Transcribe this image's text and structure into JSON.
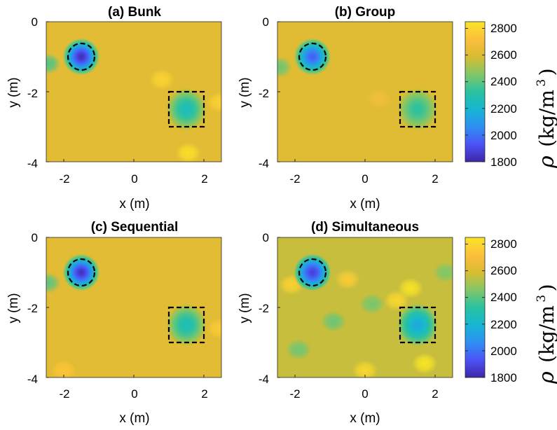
{
  "chart_data": [
    {
      "type": "heatmap",
      "title": "(a) Bunk",
      "xlabel": "x (m)",
      "ylabel": "y (m)",
      "xlim": [
        -2.5,
        2.5
      ],
      "ylim": [
        -4,
        0
      ],
      "xticks": [
        "-2",
        "0",
        "2"
      ],
      "yticks": [
        "0",
        "-2",
        "-4"
      ],
      "background_density": 2620,
      "anomalies": [
        {
          "shape": "circle",
          "center": [
            -1.5,
            -1.0
          ],
          "radius": 0.38,
          "min_density": 1820,
          "outline": "dashed"
        },
        {
          "shape": "square",
          "center": [
            1.5,
            -2.5
          ],
          "half_width": 0.5,
          "min_density": 2250,
          "outline": "dashed"
        }
      ],
      "highlights": [
        {
          "center": [
            0.8,
            -1.65
          ],
          "density": 2790
        },
        {
          "center": [
            1.55,
            -3.75
          ],
          "density": 2830
        },
        {
          "center": [
            -2.45,
            -1.2
          ],
          "density": 2380
        },
        {
          "center": [
            2.45,
            -2.3
          ],
          "density": 2780
        }
      ]
    },
    {
      "type": "heatmap",
      "title": "(b) Group",
      "xlabel": "x (m)",
      "ylabel": "y (m)",
      "xlim": [
        -2.5,
        2.5
      ],
      "ylim": [
        -4,
        0
      ],
      "xticks": [
        "-2",
        "0",
        "2"
      ],
      "yticks": [
        "0",
        "-2",
        "-4"
      ],
      "background_density": 2610,
      "anomalies": [
        {
          "shape": "circle",
          "center": [
            -1.5,
            -1.0
          ],
          "radius": 0.38,
          "min_density": 1950,
          "outline": "dashed"
        },
        {
          "shape": "square",
          "center": [
            1.5,
            -2.5
          ],
          "half_width": 0.5,
          "min_density": 2320,
          "outline": "dashed"
        }
      ],
      "highlights": [
        {
          "center": [
            -2.45,
            -1.3
          ],
          "density": 2420
        },
        {
          "center": [
            0.4,
            -2.2
          ],
          "density": 2680
        }
      ]
    },
    {
      "type": "heatmap",
      "title": "(c) Sequential",
      "xlabel": "x (m)",
      "ylabel": "y (m)",
      "xlim": [
        -2.5,
        2.5
      ],
      "ylim": [
        -4,
        0
      ],
      "xticks": [
        "-2",
        "0",
        "2"
      ],
      "yticks": [
        "0",
        "-2",
        "-4"
      ],
      "background_density": 2620,
      "anomalies": [
        {
          "shape": "circle",
          "center": [
            -1.5,
            -1.0
          ],
          "radius": 0.38,
          "min_density": 1830,
          "outline": "dashed"
        },
        {
          "shape": "square",
          "center": [
            1.5,
            -2.5
          ],
          "half_width": 0.5,
          "min_density": 2260,
          "outline": "dashed"
        }
      ],
      "highlights": [
        {
          "center": [
            -2.45,
            -1.3
          ],
          "density": 2400
        },
        {
          "center": [
            2.45,
            -2.6
          ],
          "density": 2760
        },
        {
          "center": [
            -2.0,
            -3.8
          ],
          "density": 2740
        }
      ]
    },
    {
      "type": "heatmap",
      "title": "(d) Simultaneous",
      "xlabel": "x (m)",
      "ylabel": "y (m)",
      "xlim": [
        -2.5,
        2.5
      ],
      "ylim": [
        -4,
        0
      ],
      "xticks": [
        "-2",
        "0",
        "2"
      ],
      "yticks": [
        "0",
        "-2",
        "-4"
      ],
      "background_density": 2560,
      "anomalies": [
        {
          "shape": "circle",
          "center": [
            -1.5,
            -1.0
          ],
          "radius": 0.38,
          "min_density": 1870,
          "outline": "dashed"
        },
        {
          "shape": "square",
          "center": [
            1.5,
            -2.5
          ],
          "half_width": 0.5,
          "min_density": 2150,
          "outline": "dashed"
        }
      ],
      "highlights": [
        {
          "center": [
            1.3,
            -1.45
          ],
          "density": 2840
        },
        {
          "center": [
            0.9,
            -1.8
          ],
          "density": 2800
        },
        {
          "center": [
            -2.1,
            -1.35
          ],
          "density": 2780
        },
        {
          "center": [
            -0.5,
            -1.2
          ],
          "density": 2760
        },
        {
          "center": [
            1.7,
            -3.6
          ],
          "density": 2850
        },
        {
          "center": [
            0.0,
            -3.8
          ],
          "density": 2800
        },
        {
          "center": [
            -0.9,
            -2.4
          ],
          "density": 2420
        },
        {
          "center": [
            0.2,
            -1.9
          ],
          "density": 2440
        },
        {
          "center": [
            -1.9,
            -3.2
          ],
          "density": 2430
        },
        {
          "center": [
            2.3,
            -1.0
          ],
          "density": 2450
        }
      ]
    }
  ],
  "colorbar": {
    "min": 1800,
    "max": 2850,
    "ticks": [
      "1800",
      "2000",
      "2200",
      "2400",
      "2600",
      "2800"
    ],
    "tick_values": [
      1800,
      2000,
      2200,
      2400,
      2600,
      2800
    ],
    "symbol": "ρ",
    "unit": "(kg/m",
    "unit_exp": "3",
    "unit_close": ")",
    "colormap": [
      "#3e26a8",
      "#4b53f6",
      "#2f8ff3",
      "#16b6d2",
      "#2ac2a0",
      "#81c767",
      "#d9bb32",
      "#fcbf3c",
      "#f9e525"
    ]
  }
}
